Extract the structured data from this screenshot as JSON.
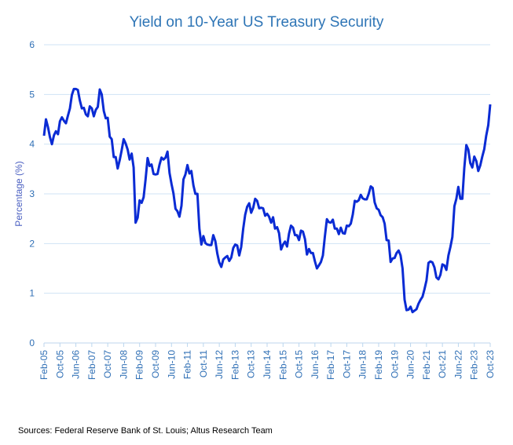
{
  "chart_data": {
    "type": "line",
    "title": "Yield on 10-Year US Treasury Security",
    "xlabel": "",
    "ylabel": "Percentage (%)",
    "ylim": [
      0,
      6
    ],
    "y_ticks": [
      "0",
      "1",
      "2",
      "3",
      "4",
      "5",
      "6"
    ],
    "x_tick_labels": [
      "Feb-05",
      "Oct-05",
      "Jun-06",
      "Feb-07",
      "Oct-07",
      "Jun-08",
      "Feb-09",
      "Oct-09",
      "Jun-10",
      "Feb-11",
      "Oct-11",
      "Jun-12",
      "Feb-13",
      "Oct-13",
      "Jun-14",
      "Feb-15",
      "Oct-15",
      "Jun-16",
      "Feb-17",
      "Oct-17",
      "Jun-18",
      "Feb-19",
      "Oct-19",
      "Jun-20",
      "Feb-21",
      "Oct-21",
      "Jun-22",
      "Feb-23",
      "Oct-23"
    ],
    "grid": true,
    "line_color": "#0a2bd4",
    "series": [
      {
        "x_range": [
          "2005-02",
          "2023-10"
        ],
        "frequency": "monthly",
        "values": [
          4.17,
          4.5,
          4.34,
          4.14,
          4.0,
          4.18,
          4.26,
          4.2,
          4.46,
          4.54,
          4.47,
          4.42,
          4.57,
          4.72,
          4.99,
          5.11,
          5.11,
          5.09,
          4.88,
          4.72,
          4.73,
          4.6,
          4.56,
          4.76,
          4.72,
          4.56,
          4.69,
          4.75,
          5.1,
          5.0,
          4.67,
          4.52,
          4.53,
          4.15,
          4.1,
          3.74,
          3.74,
          3.51,
          3.68,
          3.88,
          4.1,
          4.01,
          3.89,
          3.69,
          3.81,
          3.53,
          2.42,
          2.52,
          2.87,
          2.82,
          2.93,
          3.29,
          3.72,
          3.56,
          3.59,
          3.4,
          3.39,
          3.4,
          3.59,
          3.73,
          3.69,
          3.73,
          3.85,
          3.42,
          3.2,
          3.01,
          2.7,
          2.65,
          2.54,
          2.76,
          3.29,
          3.39,
          3.58,
          3.41,
          3.46,
          3.17,
          3.0,
          3.0,
          2.3,
          1.98,
          2.15,
          2.01,
          1.98,
          1.97,
          1.97,
          2.17,
          2.05,
          1.8,
          1.62,
          1.53,
          1.68,
          1.72,
          1.75,
          1.65,
          1.72,
          1.91,
          1.98,
          1.96,
          1.76,
          1.93,
          2.3,
          2.58,
          2.74,
          2.81,
          2.62,
          2.72,
          2.9,
          2.86,
          2.71,
          2.72,
          2.71,
          2.56,
          2.6,
          2.54,
          2.42,
          2.53,
          2.3,
          2.33,
          2.21,
          1.88,
          1.98,
          2.04,
          1.94,
          2.2,
          2.36,
          2.32,
          2.17,
          2.17,
          2.07,
          2.26,
          2.24,
          2.09,
          1.78,
          1.89,
          1.81,
          1.81,
          1.64,
          1.5,
          1.56,
          1.63,
          1.76,
          2.14,
          2.49,
          2.43,
          2.42,
          2.48,
          2.3,
          2.3,
          2.19,
          2.32,
          2.21,
          2.2,
          2.36,
          2.35,
          2.4,
          2.58,
          2.86,
          2.84,
          2.87,
          2.98,
          2.91,
          2.89,
          2.89,
          3.0,
          3.15,
          3.12,
          2.83,
          2.71,
          2.68,
          2.57,
          2.53,
          2.4,
          2.07,
          2.06,
          1.63,
          1.7,
          1.71,
          1.81,
          1.86,
          1.76,
          1.5,
          0.87,
          0.66,
          0.67,
          0.73,
          0.62,
          0.65,
          0.68,
          0.79,
          0.87,
          0.93,
          1.08,
          1.26,
          1.61,
          1.64,
          1.62,
          1.52,
          1.32,
          1.28,
          1.37,
          1.58,
          1.56,
          1.47,
          1.76,
          1.93,
          2.13,
          2.75,
          2.9,
          3.14,
          2.9,
          2.9,
          3.52,
          3.98,
          3.89,
          3.62,
          3.53,
          3.75,
          3.66,
          3.46,
          3.57,
          3.75,
          3.9,
          4.17,
          4.38,
          4.8
        ]
      }
    ]
  },
  "source": "Sources: Federal Reserve Bank of St. Louis; Altus Research Team"
}
